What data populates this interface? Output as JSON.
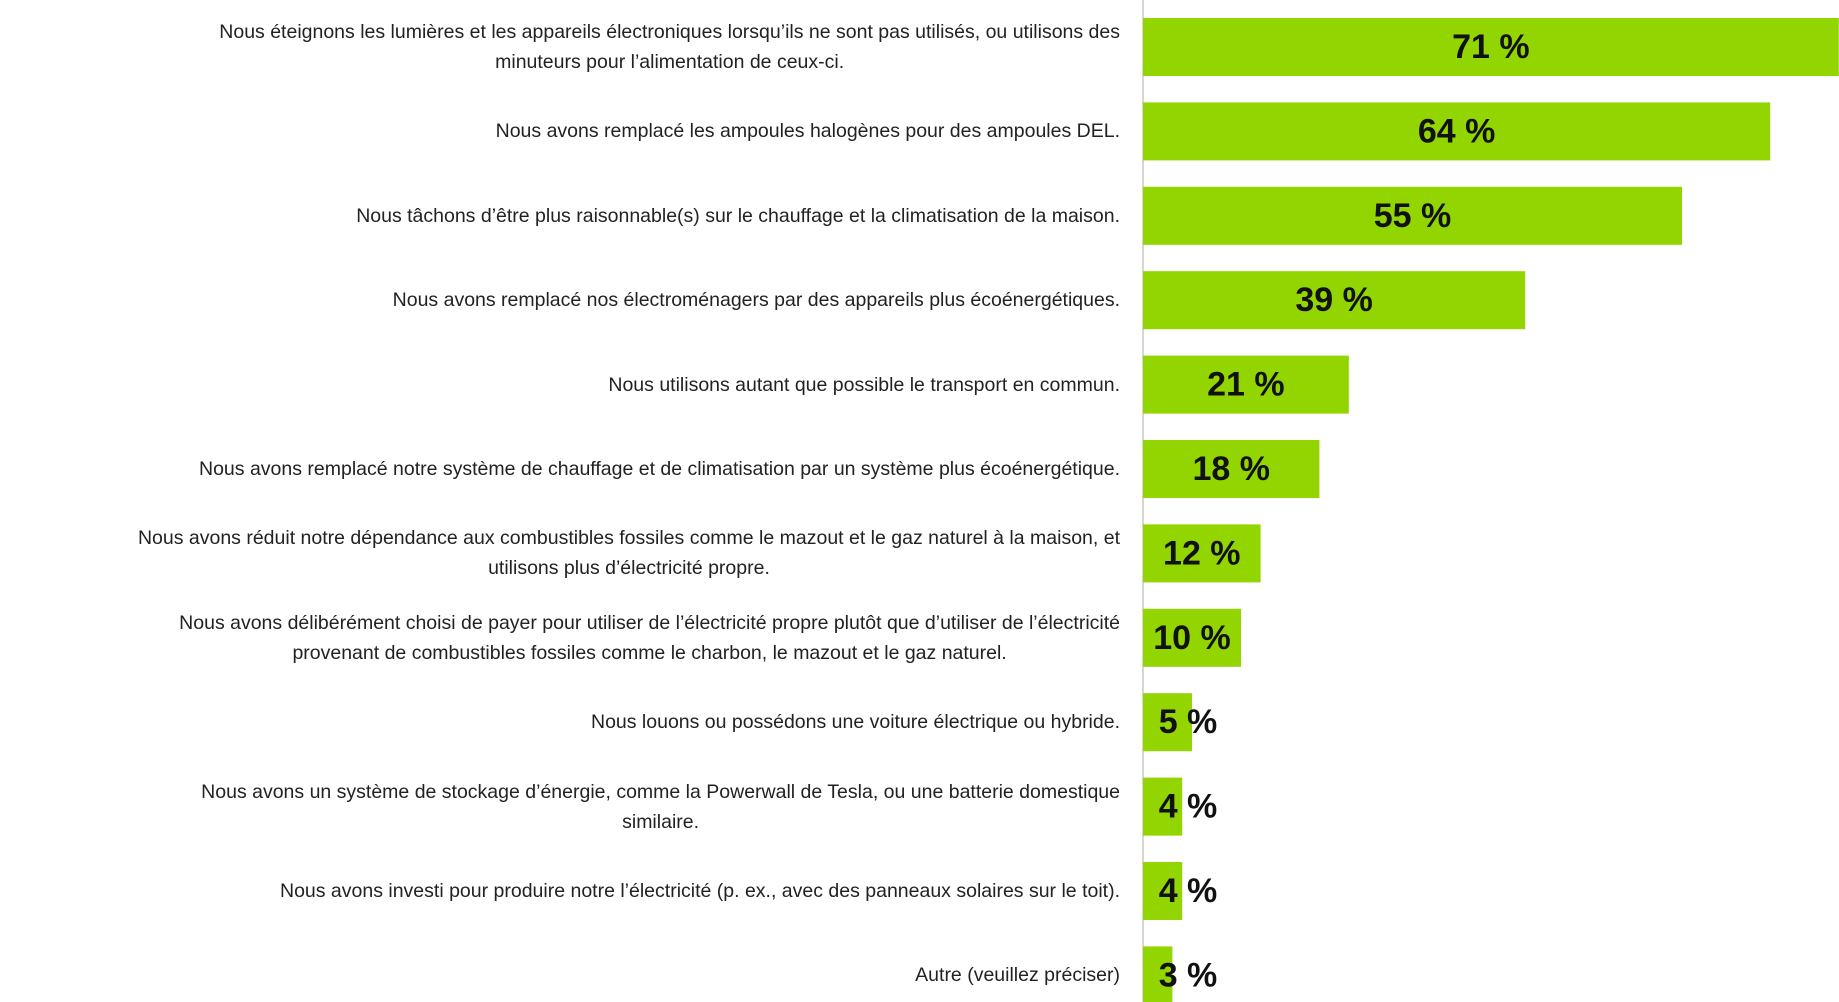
{
  "chart_data": {
    "type": "bar",
    "orientation": "horizontal",
    "color": "#92d500",
    "categories": [
      [
        "Nous éteignons les lumières et les appareils électroniques lorsqu’ils ne sont pas utilisés, ou utilisons des",
        "minuteurs pour l’alimentation de ceux-ci."
      ],
      [
        "Nous avons remplacé les ampoules halogènes pour des ampoules DEL."
      ],
      [
        "Nous tâchons d’être plus raisonnable(s) sur le chauffage et la climatisation de la maison."
      ],
      [
        "Nous avons remplacé nos électroménagers par des appareils plus écoénergétiques."
      ],
      [
        "Nous utilisons autant que possible le transport en commun."
      ],
      [
        "Nous avons remplacé notre système de chauffage et de climatisation par un système plus écoénergétique."
      ],
      [
        "Nous avons réduit notre dépendance aux combustibles fossiles comme le mazout et le gaz naturel à la maison, et",
        "utilisons plus d’électricité propre."
      ],
      [
        "Nous avons délibérément choisi de payer pour utiliser de l’électricité propre plutôt que d’utiliser de l’électricité",
        "provenant de combustibles fossiles comme le charbon, le mazout et le gaz naturel."
      ],
      [
        "Nous louons ou possédons une voiture électrique ou hybride."
      ],
      [
        "Nous avons un système de stockage d’énergie, comme la Powerwall de Tesla, ou une batterie domestique",
        "similaire."
      ],
      [
        "Nous avons investi pour produire notre l’électricité (p. ex., avec des panneaux solaires sur le toit)."
      ],
      [
        "Autre (veuillez préciser)"
      ]
    ],
    "values": [
      71,
      64,
      55,
      39,
      21,
      18,
      12,
      10,
      5,
      4,
      4,
      3
    ],
    "value_labels": [
      "71 %",
      "64 %",
      "55 %",
      "39 %",
      "21 %",
      "18 %",
      "12 %",
      "10 %",
      "5 %",
      "4 %",
      "4 %",
      "3 %"
    ]
  }
}
